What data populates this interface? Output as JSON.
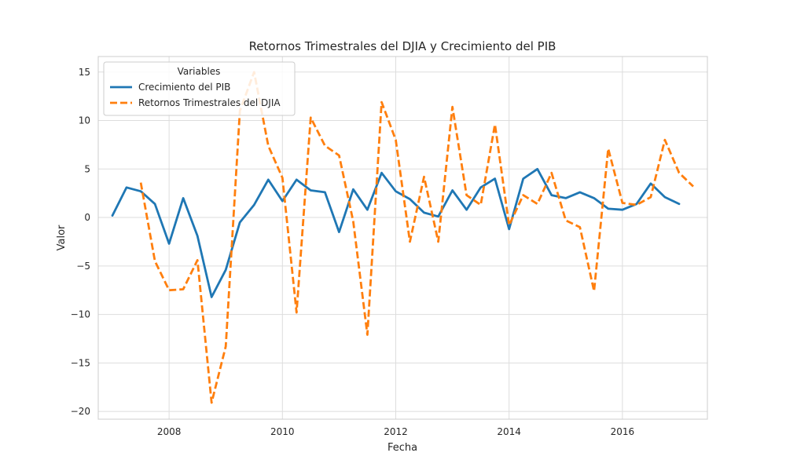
{
  "chart_data": {
    "type": "line",
    "title": "Retornos Trimestrales del DJIA y Crecimiento del PIB",
    "xlabel": "Fecha",
    "ylabel": "Valor",
    "xlim": [
      2006.75,
      2017.5
    ],
    "ylim": [
      -20.8,
      16.6
    ],
    "x_ticks": [
      2008,
      2010,
      2012,
      2014,
      2016
    ],
    "y_ticks": [
      -20,
      -15,
      -10,
      -5,
      0,
      5,
      10,
      15
    ],
    "grid": true,
    "legend": {
      "title": "Variables",
      "placement": "top-left"
    },
    "series": [
      {
        "name": "Crecimiento del PIB",
        "color": "#1f77b4",
        "style": "solid",
        "x": [
          2007.0,
          2007.25,
          2007.5,
          2007.75,
          2008.0,
          2008.25,
          2008.5,
          2008.75,
          2009.0,
          2009.25,
          2009.5,
          2009.75,
          2010.0,
          2010.25,
          2010.5,
          2010.75,
          2011.0,
          2011.25,
          2011.5,
          2011.75,
          2012.0,
          2012.25,
          2012.5,
          2012.75,
          2013.0,
          2013.25,
          2013.5,
          2013.75,
          2014.0,
          2014.25,
          2014.5,
          2014.75,
          2015.0,
          2015.25,
          2015.5,
          2015.75,
          2016.0,
          2016.25,
          2016.5,
          2016.75,
          2017.0
        ],
        "y": [
          0.2,
          3.1,
          2.7,
          1.4,
          -2.7,
          2.0,
          -1.9,
          -8.2,
          -5.4,
          -0.5,
          1.3,
          3.9,
          1.7,
          3.9,
          2.8,
          2.6,
          -1.5,
          2.9,
          0.8,
          4.6,
          2.7,
          1.9,
          0.5,
          0.1,
          2.8,
          0.8,
          3.1,
          4.0,
          -1.2,
          4.0,
          5.0,
          2.3,
          2.0,
          2.6,
          2.0,
          0.9,
          0.8,
          1.4,
          3.5,
          2.1,
          1.4
        ]
      },
      {
        "name": "Retornos Trimestrales del DJIA",
        "color": "#ff7f0e",
        "style": "dashed",
        "x": [
          2007.5,
          2007.75,
          2008.0,
          2008.25,
          2008.5,
          2008.75,
          2009.0,
          2009.25,
          2009.5,
          2009.75,
          2010.0,
          2010.25,
          2010.5,
          2010.75,
          2011.0,
          2011.25,
          2011.5,
          2011.75,
          2012.0,
          2012.25,
          2012.5,
          2012.75,
          2013.0,
          2013.25,
          2013.5,
          2013.75,
          2014.0,
          2014.25,
          2014.5,
          2014.75,
          2015.0,
          2015.25,
          2015.5,
          2015.75,
          2016.0,
          2016.25,
          2016.5,
          2016.75,
          2017.0,
          2017.25
        ],
        "y": [
          3.6,
          -4.5,
          -7.5,
          -7.4,
          -4.4,
          -19.1,
          -13.3,
          11.0,
          15.0,
          7.4,
          4.1,
          -9.8,
          10.3,
          7.4,
          6.4,
          -0.4,
          -12.1,
          11.9,
          8.0,
          -2.5,
          4.2,
          -2.5,
          11.4,
          2.3,
          1.3,
          9.6,
          -0.8,
          2.3,
          1.4,
          4.6,
          -0.3,
          -1.0,
          -7.6,
          7.1,
          1.5,
          1.3,
          2.1,
          8.0,
          4.6,
          3.2
        ]
      }
    ]
  }
}
